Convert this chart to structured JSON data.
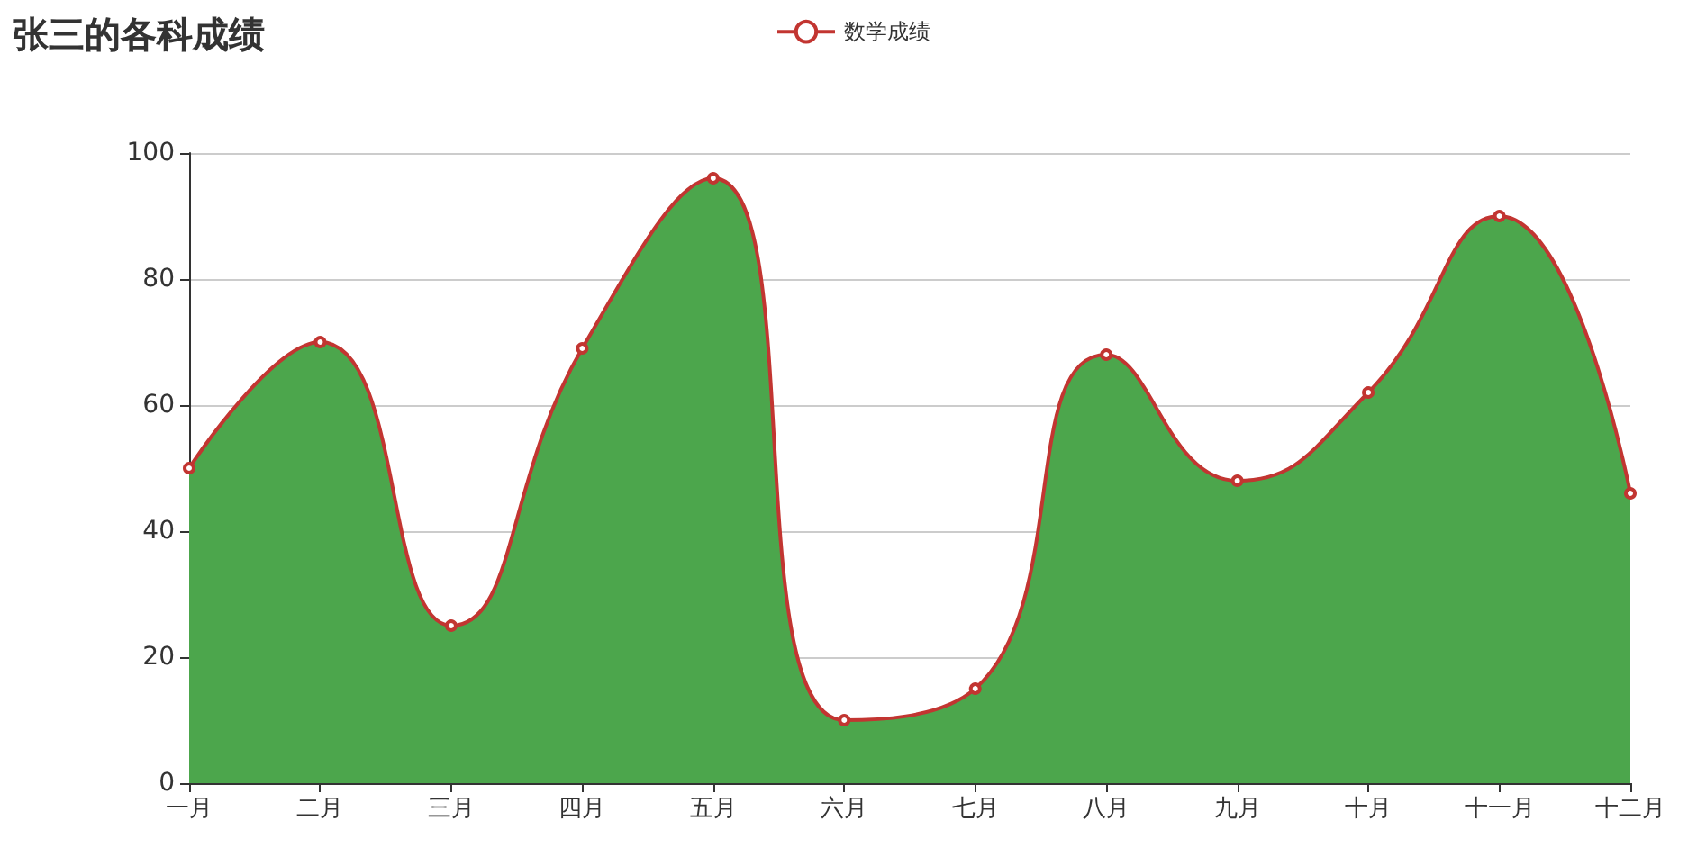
{
  "chart_data": {
    "type": "line",
    "title": "张三的各科成绩",
    "categories": [
      "一月",
      "二月",
      "三月",
      "四月",
      "五月",
      "六月",
      "七月",
      "八月",
      "九月",
      "十月",
      "十一月",
      "十二月"
    ],
    "series": [
      {
        "type": "area",
        "marker": "none",
        "color": "#4ca64c",
        "values": [
          50,
          70,
          25,
          69,
          96,
          10,
          15,
          68,
          48,
          62,
          90,
          46
        ]
      },
      {
        "name": "数学成绩",
        "color": "#c23531",
        "values": [
          50,
          70,
          25,
          69,
          96,
          10,
          15,
          68,
          48,
          62,
          90,
          46
        ]
      }
    ],
    "ylim": [
      0,
      100
    ],
    "yticks": [
      0,
      20,
      40,
      60,
      80,
      100
    ],
    "grid": "y",
    "legend": "top",
    "marker": "circle"
  }
}
